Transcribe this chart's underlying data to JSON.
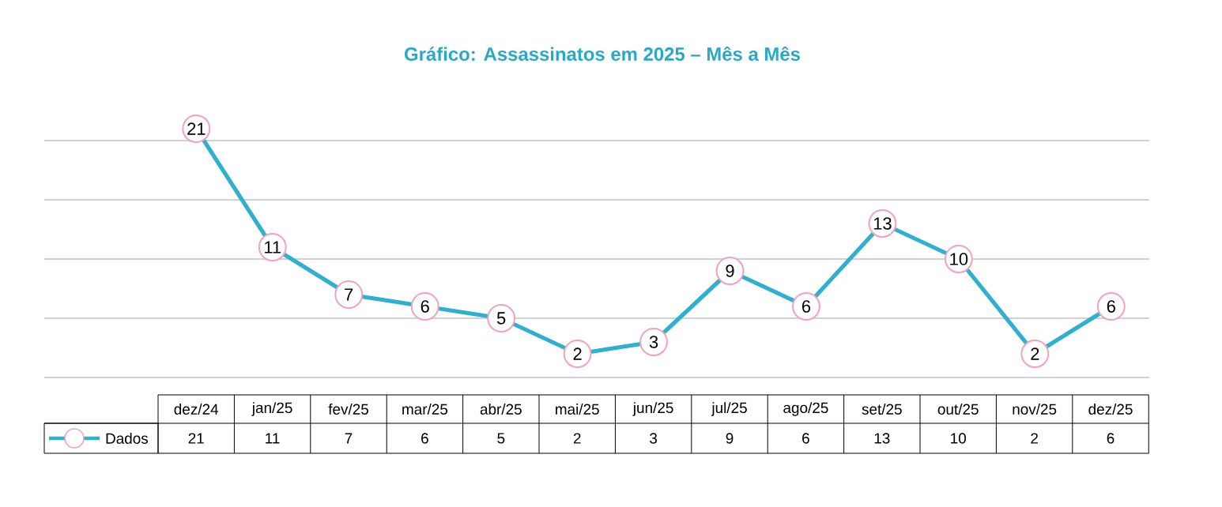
{
  "chart_data": {
    "type": "line",
    "title": "Gráfico: Assassinatos em 2025 – Mês a Mês",
    "categories": [
      "dez/24",
      "jan/25",
      "fev/25",
      "mar/25",
      "abr/25",
      "mai/25",
      "jun/25",
      "jul/25",
      "ago/25",
      "set/25",
      "out/25",
      "nov/25",
      "dez/25"
    ],
    "series": [
      {
        "name": "Dados",
        "color": "#2fb0cf",
        "values": [
          21,
          11,
          7,
          6,
          5,
          2,
          3,
          9,
          6,
          13,
          10,
          2,
          6
        ],
        "value_labels": [
          "21",
          "11",
          "7",
          "6",
          "5",
          "2",
          "3",
          "9",
          "6",
          "13",
          "10",
          "2",
          "6"
        ]
      }
    ],
    "yticks": [
      {
        "value": 0,
        "label": null
      },
      {
        "value": 5,
        "label": null
      },
      {
        "value": 10,
        "label": null
      },
      {
        "value": 15,
        "label": null
      },
      {
        "value": 20,
        "label": null
      }
    ],
    "grid": "y",
    "legend": "bottom",
    "marker": "circle",
    "line_style": "solid",
    "data_labels": true
  }
}
